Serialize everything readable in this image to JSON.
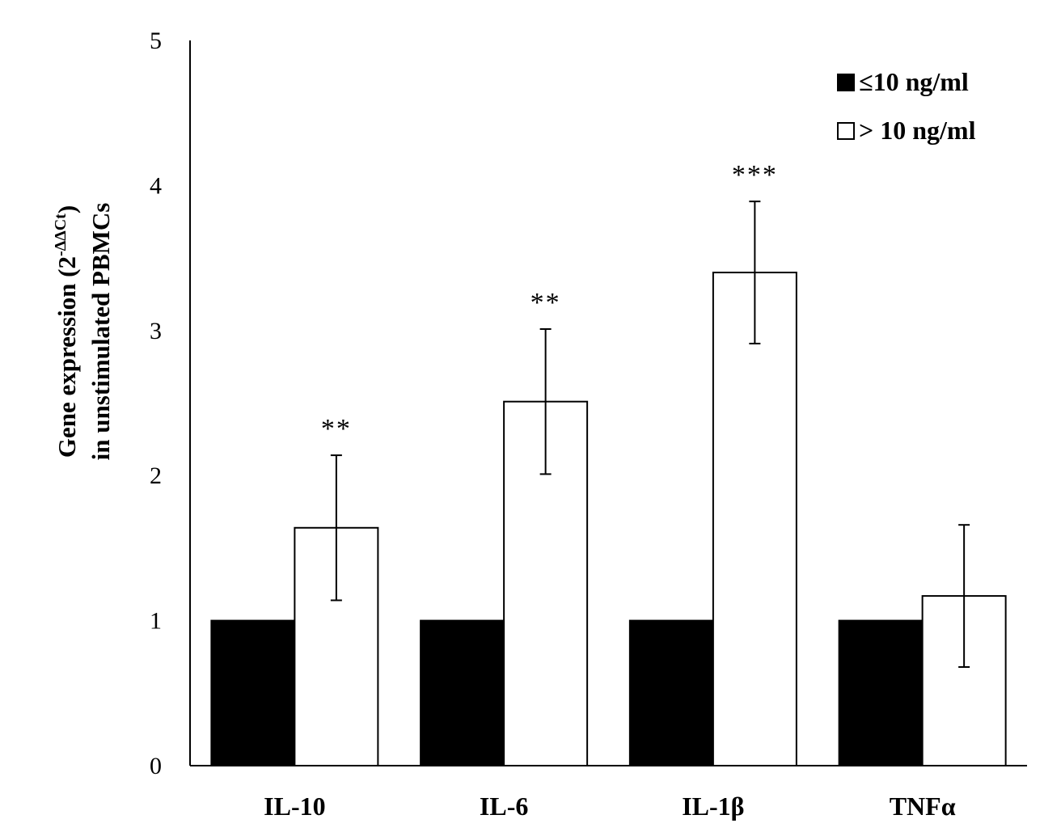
{
  "chart_data": {
    "type": "bar",
    "title": "",
    "xlabel": "",
    "ylabel_line1_prefix": "Gene expression  (2",
    "ylabel_line1_sup": "-ΔΔCt",
    "ylabel_line1_suffix": ")",
    "ylabel_line2": "in unstimulated PBMCs",
    "ylim": [
      0,
      5
    ],
    "yticks": [
      "0",
      "1",
      "2",
      "3",
      "4",
      "5"
    ],
    "categories": [
      "IL-10",
      "IL-6",
      "IL-1β",
      "TNFα"
    ],
    "series": [
      {
        "name": "≤10 ng/ml",
        "color": "#000000",
        "values": [
          1,
          1,
          1,
          1
        ],
        "errors": [
          0,
          0,
          0,
          0
        ]
      },
      {
        "name": "> 10 ng/ml",
        "color": "#ffffff",
        "values": [
          1.64,
          2.51,
          3.4,
          1.17
        ],
        "errors": [
          0.5,
          0.5,
          0.49,
          0.49
        ]
      }
    ],
    "significance": [
      "**",
      "**",
      "***",
      ""
    ],
    "legend_position": "top-right",
    "grid": false
  }
}
